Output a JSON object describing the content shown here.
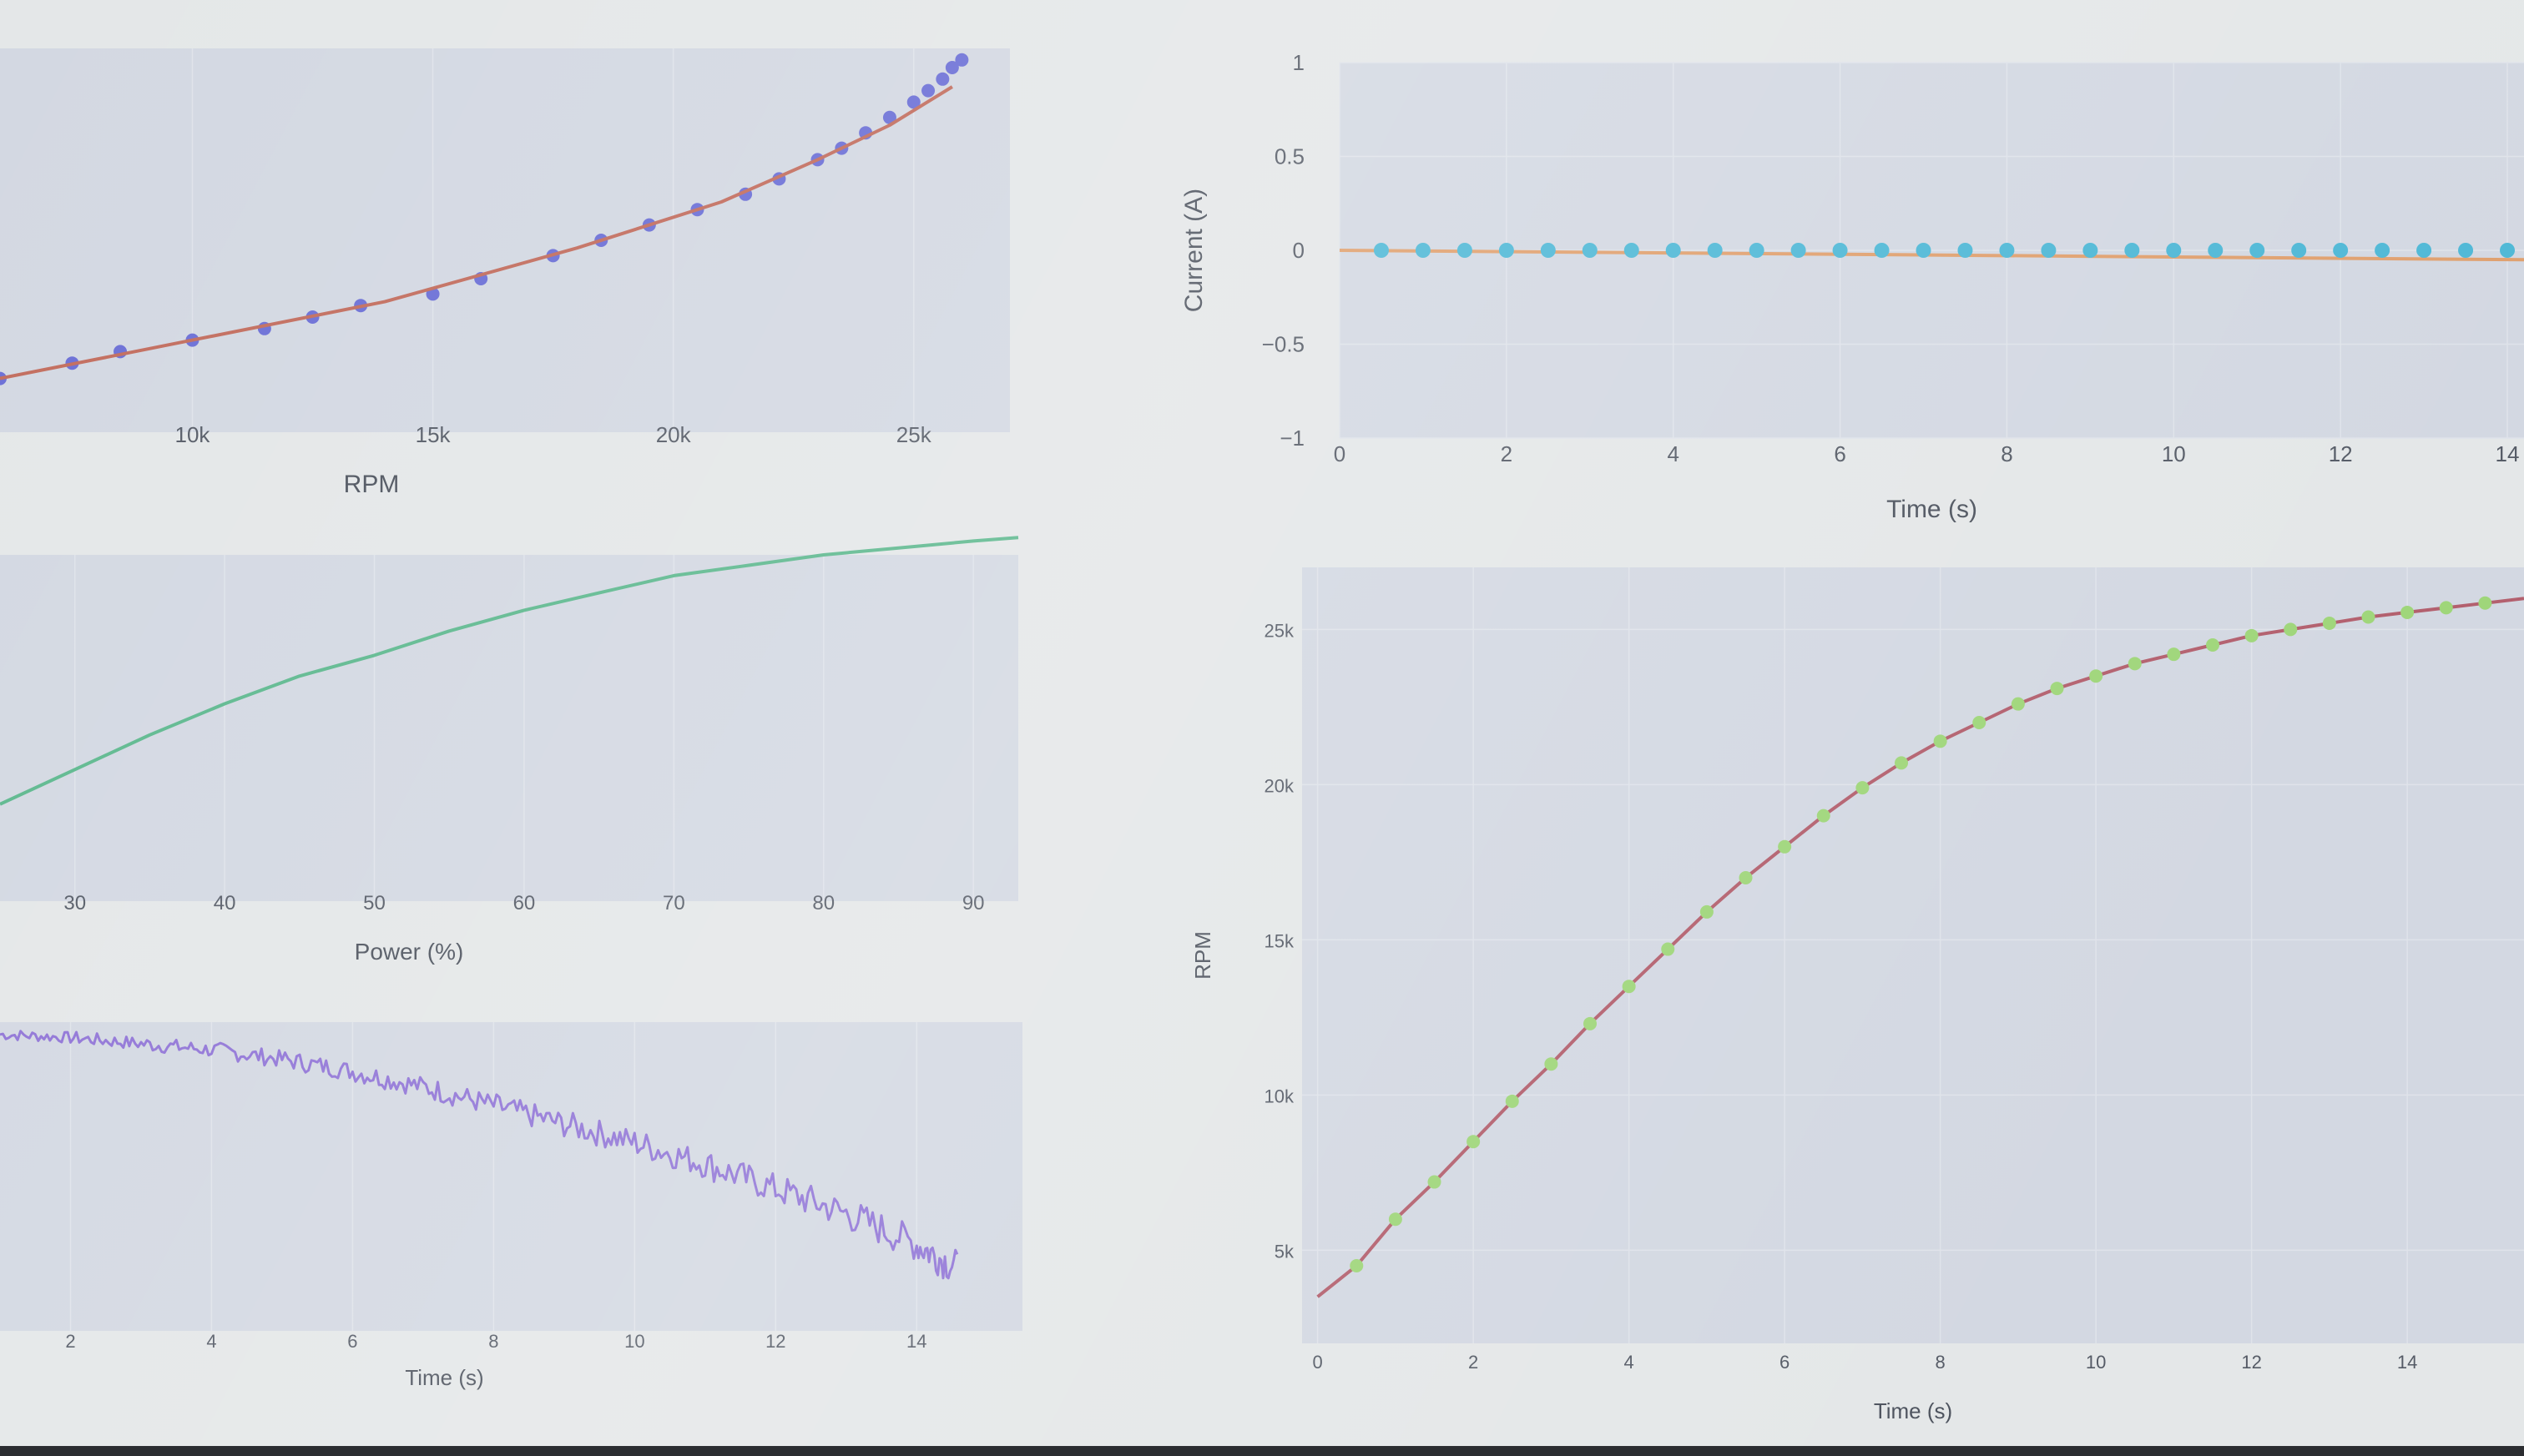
{
  "chart_data": [
    {
      "type": "scatter",
      "xlabel": "RPM",
      "ylabel": "",
      "xticks": [
        "10k",
        "15k",
        "20k",
        "25k"
      ],
      "xlim": [
        6000,
        27000
      ],
      "ylim": [
        0,
        100
      ],
      "series": [
        {
          "mode": "markers",
          "color": "#6b6fd6",
          "x": [
            6000,
            7500,
            8500,
            10000,
            11500,
            12500,
            13500,
            15000,
            16000,
            17500,
            18500,
            19500,
            20500,
            21500,
            22200,
            23000,
            23500,
            24000,
            24500,
            25000,
            25300,
            25600,
            25800,
            26000
          ],
          "y": [
            14,
            18,
            21,
            24,
            27,
            30,
            33,
            36,
            40,
            46,
            50,
            54,
            58,
            62,
            66,
            71,
            74,
            78,
            82,
            86,
            89,
            92,
            95,
            97
          ]
        },
        {
          "mode": "lines",
          "color": "#c26d5e",
          "x": [
            6000,
            10000,
            14000,
            18000,
            21000,
            23000,
            24500,
            25800
          ],
          "y": [
            14,
            24,
            34,
            48,
            60,
            71,
            80,
            90
          ]
        }
      ]
    },
    {
      "type": "line",
      "xlabel": "Power (%)",
      "ylabel": "",
      "xticks": [
        30,
        40,
        50,
        60,
        70,
        80,
        90
      ],
      "xlim": [
        25,
        93
      ],
      "ylim": [
        0,
        100
      ],
      "series": [
        {
          "color": "#5db88e",
          "x": [
            25,
            30,
            35,
            40,
            45,
            50,
            55,
            60,
            65,
            70,
            75,
            80,
            85,
            90,
            93
          ],
          "y": [
            28,
            38,
            48,
            57,
            65,
            71,
            78,
            84,
            89,
            94,
            97,
            100,
            102,
            104,
            105
          ]
        }
      ]
    },
    {
      "type": "line",
      "xlabel": "Time (s)",
      "ylabel": "",
      "xticks": [
        2,
        4,
        6,
        8,
        10,
        12,
        14
      ],
      "xlim": [
        1,
        15.5
      ],
      "ylim": [
        0,
        100
      ],
      "series": [
        {
          "color": "#8f73d6",
          "x": [
            1,
            2,
            3,
            4,
            5,
            6,
            7,
            8,
            9,
            10,
            11,
            12,
            13,
            14,
            14.6
          ],
          "y": [
            96,
            95,
            93,
            91,
            88,
            84,
            79,
            73,
            67,
            61,
            54,
            46,
            38,
            28,
            20
          ],
          "noise": 3
        }
      ]
    },
    {
      "type": "scatter",
      "xlabel": "Time (s)",
      "ylabel": "Current (A)",
      "xticks": [
        0,
        2,
        4,
        6,
        8,
        10,
        12,
        14
      ],
      "yticks": [
        1,
        0.5,
        0,
        -0.5,
        -1
      ],
      "xlim": [
        0,
        14.2
      ],
      "ylim": [
        -1,
        1
      ],
      "series": [
        {
          "mode": "lines",
          "color": "#e0a06e",
          "x": [
            0,
            14.2
          ],
          "y": [
            0,
            -0.05
          ]
        },
        {
          "mode": "markers",
          "color": "#4fb8d6",
          "x": [
            0.5,
            1,
            1.5,
            2,
            2.5,
            3,
            3.5,
            4,
            4.5,
            5,
            5.5,
            6,
            6.5,
            7,
            7.5,
            8,
            8.5,
            9,
            9.5,
            10,
            10.5,
            11,
            11.5,
            12,
            12.5,
            13,
            13.5,
            14
          ],
          "y": [
            0,
            0,
            0,
            0,
            0,
            0,
            0,
            0,
            0,
            0,
            0,
            0,
            0,
            0,
            0,
            0,
            0,
            0,
            0,
            0,
            0,
            0,
            0,
            0,
            0,
            0,
            0,
            0
          ]
        }
      ]
    },
    {
      "type": "scatter",
      "xlabel": "Time (s)",
      "ylabel": "RPM",
      "xticks": [
        0,
        2,
        4,
        6,
        8,
        10,
        12,
        14
      ],
      "yticks": [
        "25k",
        "20k",
        "15k",
        "10k",
        "5k"
      ],
      "xlim": [
        -0.2,
        15.5
      ],
      "ylim": [
        2000,
        27000
      ],
      "series": [
        {
          "mode": "lines",
          "color": "#b3606e",
          "x": [
            0,
            0.5,
            1,
            1.5,
            2,
            2.5,
            3,
            3.5,
            4,
            4.5,
            5,
            5.5,
            6,
            6.5,
            7,
            7.5,
            8,
            8.5,
            9,
            9.5,
            10,
            10.5,
            11,
            11.5,
            12,
            12.5,
            13,
            13.5,
            14,
            14.5,
            15,
            15.5
          ],
          "y": [
            3500,
            4500,
            6000,
            7200,
            8500,
            9800,
            11000,
            12300,
            13500,
            14700,
            15900,
            17000,
            18000,
            19000,
            19900,
            20700,
            21400,
            22000,
            22600,
            23100,
            23500,
            23900,
            24200,
            24500,
            24800,
            25000,
            25200,
            25400,
            25550,
            25700,
            25850,
            26000
          ]
        },
        {
          "mode": "markers",
          "color": "#9fd67a",
          "x": [
            0.5,
            1,
            1.5,
            2,
            2.5,
            3,
            3.5,
            4,
            4.5,
            5,
            5.5,
            6,
            6.5,
            7,
            7.5,
            8,
            8.5,
            9,
            9.5,
            10,
            10.5,
            11,
            11.5,
            12,
            12.5,
            13,
            13.5,
            14,
            14.5,
            15
          ],
          "y": [
            4500,
            6000,
            7200,
            8500,
            9800,
            11000,
            12300,
            13500,
            14700,
            15900,
            17000,
            18000,
            19000,
            19900,
            20700,
            21400,
            22000,
            22600,
            23100,
            23500,
            23900,
            24200,
            24500,
            24800,
            25000,
            25200,
            25400,
            25550,
            25700,
            25850
          ]
        }
      ]
    }
  ]
}
